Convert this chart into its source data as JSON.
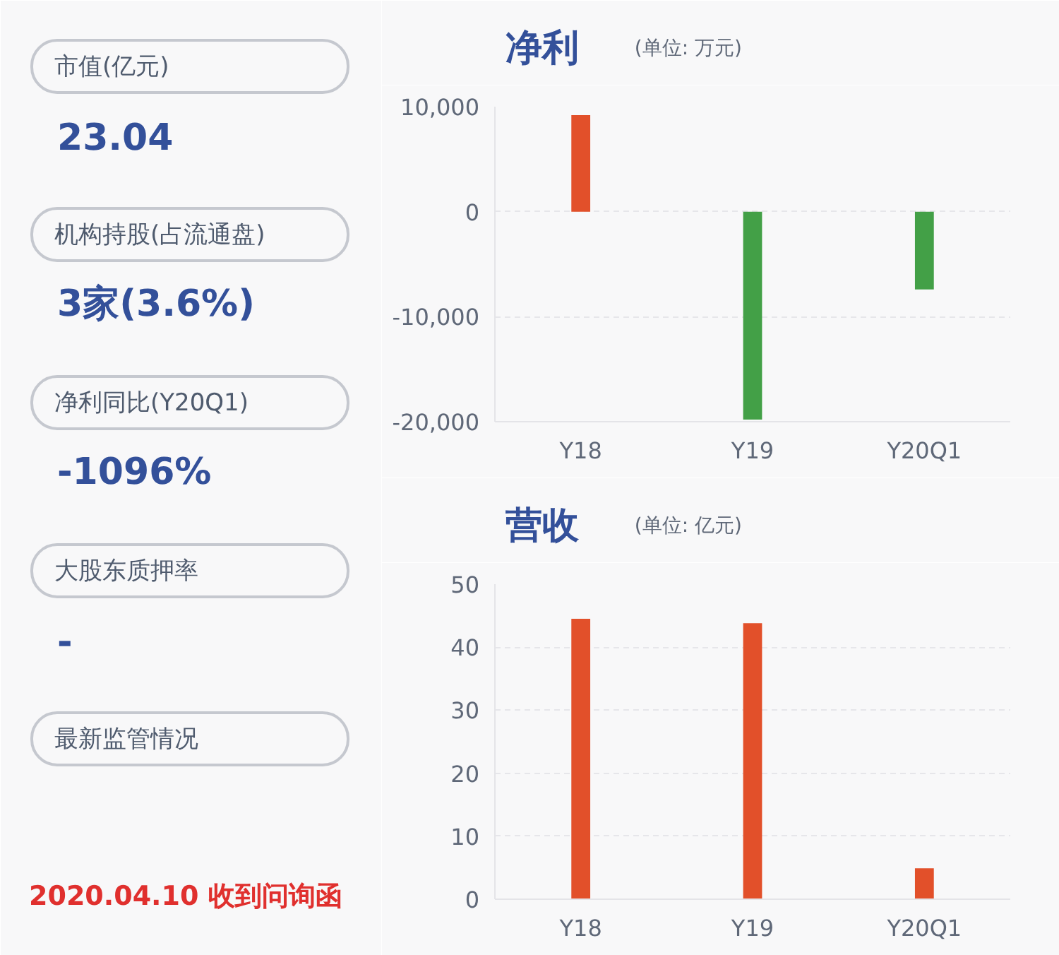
{
  "chart_data": [
    {
      "type": "other",
      "annotations": [
        "市值(亿元)",
        "23.04",
        "机构持股(占流通盘)",
        "3家(3.6%)",
        "净利同比(Y20Q1)",
        "-1096%",
        "大股东质押率",
        "-",
        "最新监管情况",
        "2020.04.10 收到问询函"
      ]
    },
    {
      "type": "bar",
      "title": "净利",
      "subtitle": "(单位: 万元)",
      "categories": [
        "Y18",
        "Y19",
        "Y20Q1"
      ],
      "values": [
        9200,
        -19800,
        -7400
      ],
      "colors": [
        "#e2502a",
        "#43a047",
        "#43a047"
      ],
      "ylim": [
        -20000,
        10000
      ],
      "yticks": [
        {
          "value": -20000,
          "label": "-20,000"
        },
        {
          "value": -10000,
          "label": "-10,000"
        },
        0,
        {
          "value": 10000,
          "label": "10,000"
        }
      ],
      "grid": "y"
    },
    {
      "type": "bar",
      "title": "营收",
      "subtitle": "(单位: 亿元)",
      "categories": [
        "Y18",
        "Y19",
        "Y20Q1"
      ],
      "values": [
        44.5,
        43.8,
        4.9
      ],
      "colors": [
        "#e2502a",
        "#e2502a",
        "#e2502a"
      ],
      "ylim": [
        0,
        50
      ],
      "yticks": [
        0,
        10,
        20,
        30,
        40,
        50
      ],
      "grid": "y"
    }
  ]
}
